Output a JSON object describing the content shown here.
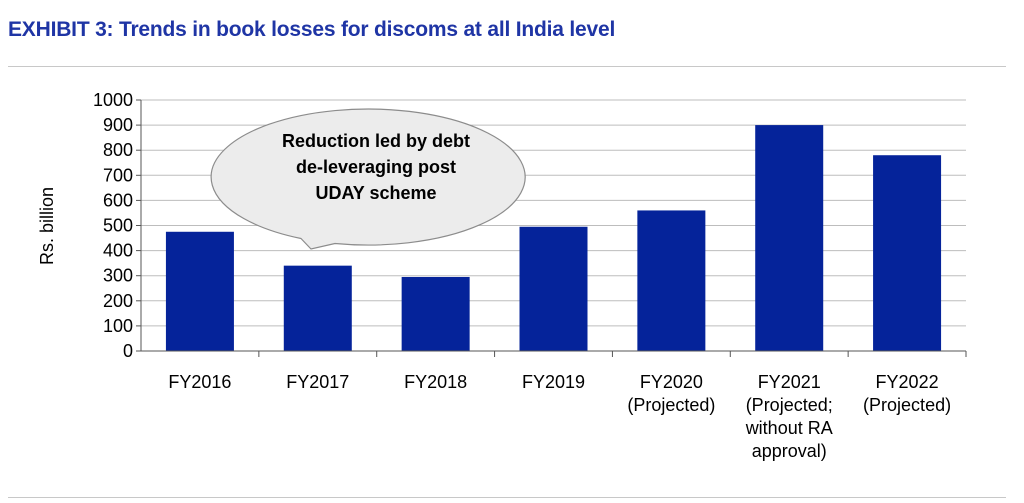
{
  "header": {
    "title": "EXHIBIT 3: Trends in book losses for discoms at all India level"
  },
  "colors": {
    "title": "#1f35a5",
    "bar": "#05239a",
    "callout_fill": "#ececec",
    "callout_stroke": "#8c8c8c"
  },
  "chart_data": {
    "type": "bar",
    "title": "Trends in book losses for discoms at all India level",
    "xlabel": "",
    "ylabel": "Rs. billion",
    "ylim": [
      0,
      1000
    ],
    "yticks": [
      0,
      100,
      200,
      300,
      400,
      500,
      600,
      700,
      800,
      900,
      1000
    ],
    "grid": true,
    "categories": [
      [
        "FY2016"
      ],
      [
        "FY2017"
      ],
      [
        "FY2018"
      ],
      [
        "FY2019"
      ],
      [
        "FY2020",
        "(Projected)"
      ],
      [
        "FY2021",
        "(Projected;",
        "without RA",
        "approval)"
      ],
      [
        "FY2022",
        "(Projected)"
      ]
    ],
    "values": [
      475,
      340,
      295,
      495,
      560,
      900,
      780
    ],
    "annotation": {
      "lines": [
        "Reduction led by debt",
        "de-leveraging post",
        "UDAY scheme"
      ],
      "points_to": "FY2017"
    }
  }
}
